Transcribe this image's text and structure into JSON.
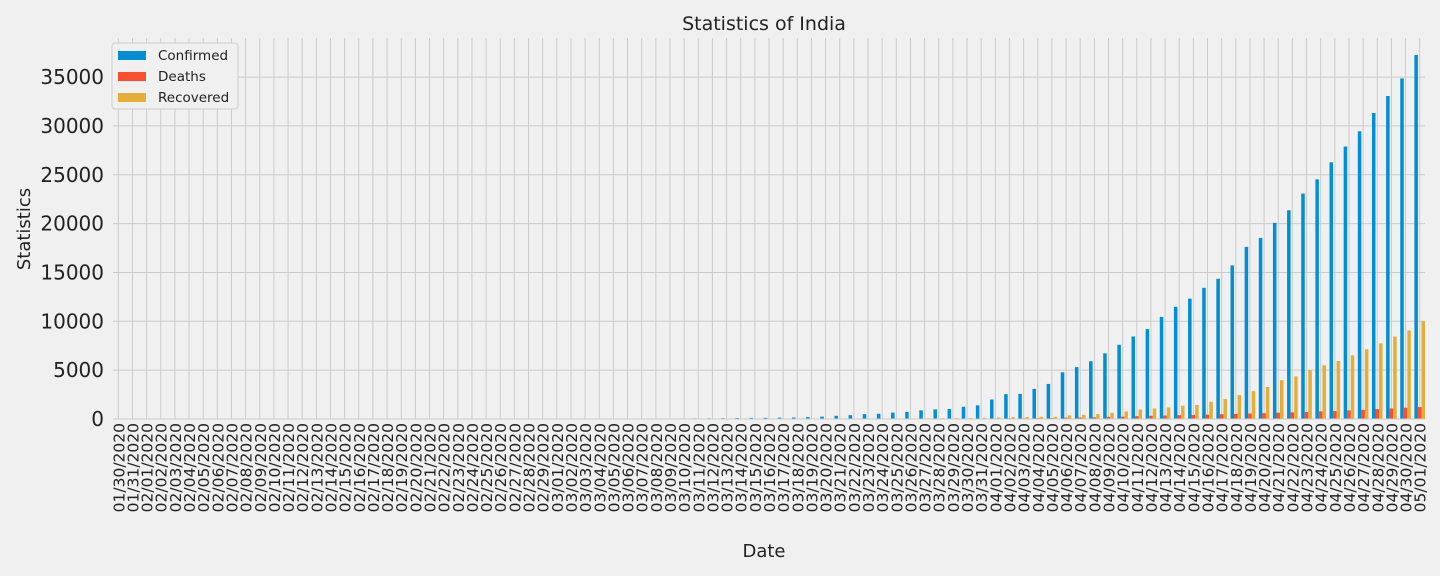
{
  "chart_data": {
    "type": "bar",
    "title": "Statistics of India",
    "xlabel": "Date",
    "ylabel": "Statistics",
    "ylim": [
      0,
      39000
    ],
    "yticks": [
      0,
      5000,
      10000,
      15000,
      20000,
      25000,
      30000,
      35000
    ],
    "legend_position": "top-left",
    "grid": true,
    "categories": [
      "01/30/2020",
      "01/31/2020",
      "02/01/2020",
      "02/02/2020",
      "02/03/2020",
      "02/04/2020",
      "02/05/2020",
      "02/06/2020",
      "02/07/2020",
      "02/08/2020",
      "02/09/2020",
      "02/10/2020",
      "02/11/2020",
      "02/12/2020",
      "02/13/2020",
      "02/14/2020",
      "02/15/2020",
      "02/16/2020",
      "02/17/2020",
      "02/18/2020",
      "02/19/2020",
      "02/20/2020",
      "02/21/2020",
      "02/22/2020",
      "02/23/2020",
      "02/24/2020",
      "02/25/2020",
      "02/26/2020",
      "02/27/2020",
      "02/28/2020",
      "02/29/2020",
      "03/01/2020",
      "03/02/2020",
      "03/03/2020",
      "03/04/2020",
      "03/05/2020",
      "03/06/2020",
      "03/07/2020",
      "03/08/2020",
      "03/09/2020",
      "03/10/2020",
      "03/11/2020",
      "03/12/2020",
      "03/13/2020",
      "03/14/2020",
      "03/15/2020",
      "03/16/2020",
      "03/17/2020",
      "03/18/2020",
      "03/19/2020",
      "03/20/2020",
      "03/21/2020",
      "03/22/2020",
      "03/23/2020",
      "03/24/2020",
      "03/25/2020",
      "03/26/2020",
      "03/27/2020",
      "03/28/2020",
      "03/29/2020",
      "03/30/2020",
      "03/31/2020",
      "04/01/2020",
      "04/02/2020",
      "04/03/2020",
      "04/04/2020",
      "04/05/2020",
      "04/06/2020",
      "04/07/2020",
      "04/08/2020",
      "04/09/2020",
      "04/10/2020",
      "04/11/2020",
      "04/12/2020",
      "04/13/2020",
      "04/14/2020",
      "04/15/2020",
      "04/16/2020",
      "04/17/2020",
      "04/18/2020",
      "04/19/2020",
      "04/20/2020",
      "04/21/2020",
      "04/22/2020",
      "04/23/2020",
      "04/24/2020",
      "04/25/2020",
      "04/26/2020",
      "04/27/2020",
      "04/28/2020",
      "04/29/2020",
      "04/30/2020",
      "05/01/2020"
    ],
    "series": [
      {
        "name": "Confirmed",
        "color": "#008fd5",
        "values": [
          1,
          1,
          1,
          2,
          3,
          3,
          3,
          3,
          3,
          3,
          3,
          3,
          3,
          3,
          3,
          3,
          3,
          3,
          3,
          3,
          3,
          3,
          3,
          3,
          3,
          3,
          3,
          3,
          3,
          3,
          3,
          3,
          5,
          6,
          28,
          30,
          31,
          34,
          39,
          43,
          56,
          62,
          73,
          82,
          102,
          113,
          119,
          142,
          156,
          194,
          244,
          330,
          396,
          499,
          536,
          657,
          727,
          887,
          987,
          1024,
          1251,
          1397,
          1998,
          2543,
          2567,
          3082,
          3588,
          4778,
          5311,
          5916,
          6725,
          7598,
          8446,
          9205,
          10453,
          11487,
          12322,
          13430,
          14352,
          15722,
          17615,
          18539,
          20080,
          21370,
          23077,
          24530,
          26283,
          27890,
          29451,
          31324,
          33062,
          34863,
          37257
        ]
      },
      {
        "name": "Deaths",
        "color": "#fc4f30",
        "values": [
          0,
          0,
          0,
          0,
          0,
          0,
          0,
          0,
          0,
          0,
          0,
          0,
          0,
          0,
          0,
          0,
          0,
          0,
          0,
          0,
          0,
          0,
          0,
          0,
          0,
          0,
          0,
          0,
          0,
          0,
          0,
          0,
          0,
          0,
          0,
          0,
          0,
          0,
          0,
          0,
          0,
          0,
          1,
          2,
          2,
          2,
          2,
          3,
          3,
          4,
          5,
          4,
          7,
          10,
          10,
          12,
          20,
          20,
          24,
          27,
          32,
          35,
          58,
          72,
          72,
          86,
          99,
          136,
          150,
          178,
          226,
          246,
          288,
          331,
          358,
          393,
          405,
          448,
          486,
          521,
          559,
          592,
          645,
          681,
          721,
          780,
          825,
          881,
          939,
          1008,
          1079,
          1154,
          1223
        ]
      },
      {
        "name": "Recovered",
        "color": "#e5ae38",
        "values": [
          0,
          0,
          0,
          0,
          0,
          0,
          0,
          0,
          0,
          0,
          0,
          0,
          0,
          0,
          0,
          3,
          3,
          3,
          3,
          3,
          3,
          3,
          3,
          3,
          3,
          3,
          3,
          3,
          3,
          3,
          3,
          3,
          3,
          3,
          3,
          3,
          3,
          3,
          3,
          3,
          4,
          4,
          4,
          4,
          4,
          13,
          13,
          14,
          14,
          15,
          20,
          23,
          27,
          27,
          40,
          43,
          45,
          73,
          84,
          95,
          102,
          123,
          148,
          191,
          192,
          229,
          229,
          375,
          421,
          506,
          620,
          774,
          969,
          1080,
          1181,
          1359,
          1432,
          1768,
          2041,
          2463,
          2854,
          3273,
          3975,
          4370,
          5012,
          5498,
          5939,
          6523,
          7137,
          7747,
          8437,
          9068,
          10007
        ]
      }
    ]
  }
}
